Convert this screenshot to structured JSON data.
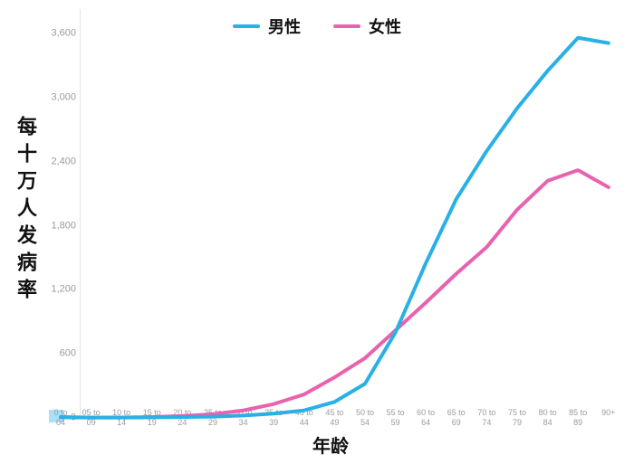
{
  "chart_data": {
    "type": "line",
    "title": "",
    "xlabel": "年龄",
    "ylabel": "每十万人发病率",
    "categories": [
      "0 to 04",
      "05 to 09",
      "10 to 14",
      "15 to 19",
      "20 to 24",
      "25 to 29",
      "30 to 34",
      "35 to 39",
      "40 to 44",
      "45 to 49",
      "50 to 54",
      "55 to 59",
      "60 to 64",
      "65 to 69",
      "70 to 74",
      "75 to 79",
      "80 to 84",
      "85 to 89",
      "90+"
    ],
    "series": [
      {
        "name": "男性",
        "color": "#29b0e6",
        "values": [
          8,
          3,
          3,
          5,
          8,
          12,
          22,
          40,
          70,
          150,
          320,
          800,
          1450,
          2050,
          2500,
          2900,
          3250,
          3560,
          3510
        ]
      },
      {
        "name": "女性",
        "color": "#e962ae",
        "values": [
          5,
          3,
          4,
          8,
          18,
          35,
          70,
          130,
          220,
          380,
          560,
          820,
          1080,
          1350,
          1600,
          1950,
          2220,
          2320,
          2160
        ]
      }
    ],
    "ylim": [
      0,
      3600
    ],
    "yticks": [
      0,
      600,
      1200,
      1800,
      2400,
      3000,
      3600
    ],
    "ytick_labels": [
      "0",
      "600",
      "1,200",
      "1,800",
      "2,400",
      "3,000",
      "3,600"
    ],
    "grid": false,
    "legend_position": "top"
  }
}
